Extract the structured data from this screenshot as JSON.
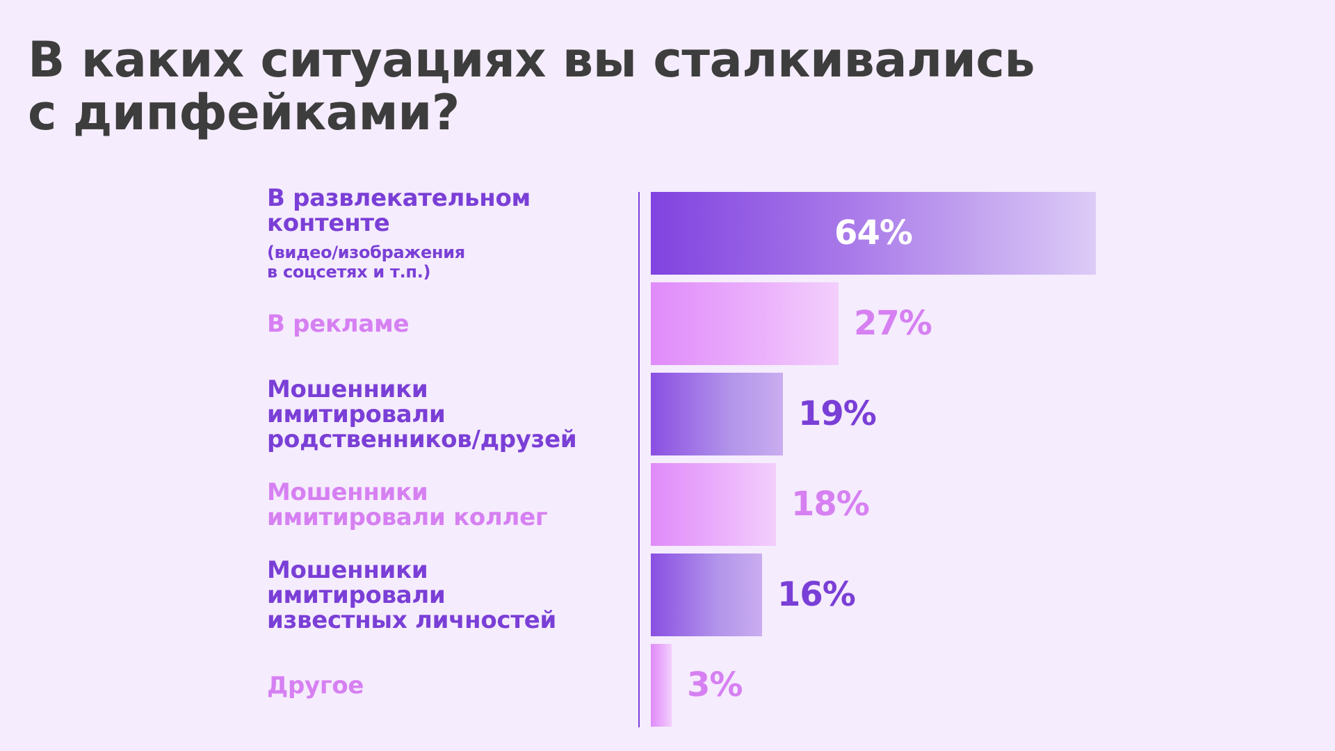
{
  "title_lines": [
    "В каких ситуациях вы сталкивались",
    "с дипфейками?"
  ],
  "colors": {
    "background": "#f5ecfd",
    "title": "#3d3d3d",
    "violet": "#7a3fd6",
    "pink": "#d680f2"
  },
  "chart_data": {
    "type": "bar",
    "orientation": "horizontal",
    "categories": [
      {
        "lines": [
          "В развлекательном",
          "контенте"
        ],
        "note_lines": [
          "(видео/изображения",
          "в соцсетях и т.п.)"
        ],
        "tone": "violet"
      },
      {
        "lines": [
          "В рекламе"
        ],
        "note_lines": [],
        "tone": "pink"
      },
      {
        "lines": [
          "Мошенники",
          "имитировали",
          "родственников/друзей"
        ],
        "note_lines": [],
        "tone": "violet"
      },
      {
        "lines": [
          "Мошенники",
          "имитировали коллег"
        ],
        "note_lines": [],
        "tone": "pink"
      },
      {
        "lines": [
          "Мошенники",
          "имитировали",
          "известных личностей"
        ],
        "note_lines": [],
        "tone": "violet"
      },
      {
        "lines": [
          "Другое"
        ],
        "note_lines": [],
        "tone": "pink"
      }
    ],
    "values": [
      64,
      27,
      19,
      18,
      16,
      3
    ],
    "value_labels": [
      "64%",
      "27%",
      "19%",
      "18%",
      "16%",
      "3%"
    ],
    "unit": "%",
    "xlim": [
      0,
      64
    ],
    "grid": false,
    "legend": false
  }
}
